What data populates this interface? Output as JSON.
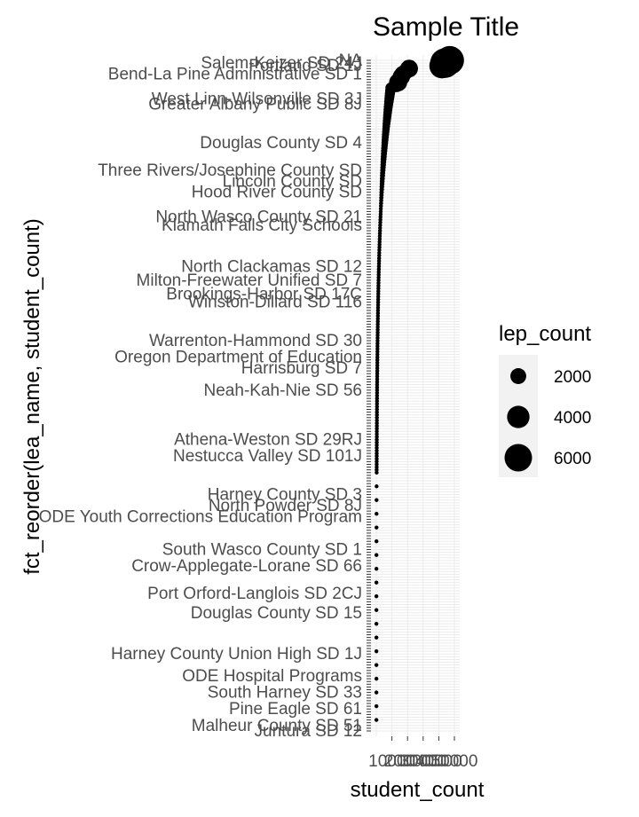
{
  "chart_data": {
    "type": "scatter",
    "title": "Sample Title",
    "xlabel": "student_count",
    "ylabel": "fct_reorder(lea_name, student_count)",
    "x_ticks": [
      "10000",
      "20000",
      "30000",
      "40000",
      "50000"
    ],
    "xlim": [
      0,
      50000
    ],
    "y_labels_readable": [
      {
        "label": "Portland SD 1J",
        "rank": 2
      },
      {
        "label": "NA",
        "rank": 0
      },
      {
        "label": "Salem-Keizer SD 24J",
        "rank": 1
      },
      {
        "label": "Bend-La Pine Administrative SD 1",
        "rank": 5
      },
      {
        "label": "West Linn-Wilsonville SD 3J",
        "rank": 14
      },
      {
        "label": "Greater Albany Public SD 8J",
        "rank": 16
      },
      {
        "label": "Douglas County SD 4",
        "rank": 30
      },
      {
        "label": "Three Rivers/Josephine County SD",
        "rank": 40
      },
      {
        "label": "Lincoln County SD",
        "rank": 44
      },
      {
        "label": "Hood River County SD",
        "rank": 48
      },
      {
        "label": "North Wasco County SD 21",
        "rank": 57
      },
      {
        "label": "Klamath Falls City Schools",
        "rank": 60
      },
      {
        "label": "North Clackamas SD 12",
        "rank": 75
      },
      {
        "label": "Milton-Freewater Unified SD 7",
        "rank": 80
      },
      {
        "label": "Brookings-Harbor SD 17C",
        "rank": 85
      },
      {
        "label": "Winston-Dillard SD 116",
        "rank": 88
      },
      {
        "label": "Warrenton-Hammond SD 30",
        "rank": 102
      },
      {
        "label": "Oregon Department of Education",
        "rank": 108
      },
      {
        "label": "Harrisburg SD 7",
        "rank": 112
      },
      {
        "label": "Neah-Kah-Nie SD 56",
        "rank": 120
      },
      {
        "label": "Athena-Weston SD 29RJ",
        "rank": 138
      },
      {
        "label": "Nestucca Valley SD 101J",
        "rank": 144
      },
      {
        "label": "Harney County SD 3",
        "rank": 158
      },
      {
        "label": "North Powder SD 8J",
        "rank": 162
      },
      {
        "label": "ODE Youth Corrections Education Program",
        "rank": 166
      },
      {
        "label": "South Wasco County SD 1",
        "rank": 178
      },
      {
        "label": "Crow-Applegate-Lorane SD 66",
        "rank": 184
      },
      {
        "label": "Port Orford-Langlois SD 2CJ",
        "rank": 194
      },
      {
        "label": "Douglas County SD 15",
        "rank": 201
      },
      {
        "label": "Harney County Union High SD 1J",
        "rank": 216
      },
      {
        "label": "ODE Hospital Programs",
        "rank": 224
      },
      {
        "label": "South Harney SD 33",
        "rank": 230
      },
      {
        "label": "Pine Eagle SD 61",
        "rank": 236
      },
      {
        "label": "Malheur County SD 51",
        "rank": 242
      },
      {
        "label": "Juntura SD 12",
        "rank": 244
      }
    ],
    "legend": {
      "title": "lep_count",
      "placement": "right",
      "entries": [
        {
          "label": "2000",
          "value": 2000
        },
        {
          "label": "4000",
          "value": 4000
        },
        {
          "label": "6000",
          "value": 6000
        }
      ]
    },
    "points_note_values": [
      {
        "rank": 0,
        "x": 47000,
        "lep": 6500
      },
      {
        "rank": 1,
        "x": 44000,
        "lep": 7000
      },
      {
        "rank": 2,
        "x": 42000,
        "lep": 5000
      },
      {
        "rank": 3,
        "x": 21000,
        "lep": 2500
      },
      {
        "rank": 4,
        "x": 19000,
        "lep": 2000
      },
      {
        "rank": 5,
        "x": 17000,
        "lep": 2200
      },
      {
        "rank": 6,
        "x": 16000,
        "lep": 2400
      },
      {
        "rank": 7,
        "x": 15000,
        "lep": 1800
      },
      {
        "rank": 8,
        "x": 14000,
        "lep": 2600
      },
      {
        "rank": 9,
        "x": 13000,
        "lep": 1600
      }
    ],
    "grid": true,
    "background": "#ffffff",
    "grid_color": "#ebebeb",
    "point_color": "#000000"
  }
}
